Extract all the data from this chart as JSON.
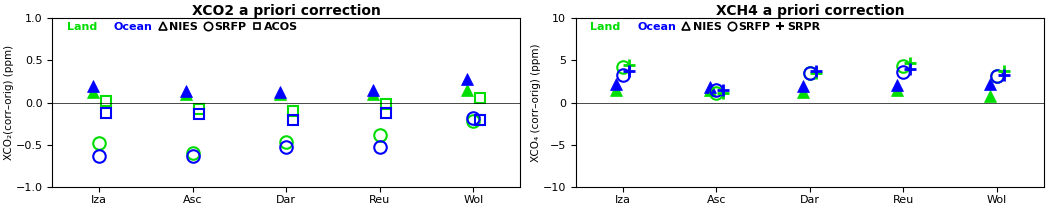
{
  "title_left": "XCO2 a priori correction",
  "title_right": "XCH4 a priori correction",
  "ylabel_left": "XCO₂(corr–orig) (ppm)",
  "ylabel_right": "XCO₄ (corr–orig) (ppm)",
  "stations": [
    "Iza",
    "Asc",
    "Dar",
    "Reu",
    "Wol"
  ],
  "ylim_left": [
    -1.0,
    1.0
  ],
  "ylim_right": [
    -10,
    10
  ],
  "yticks_left": [
    -1.0,
    -0.5,
    0,
    0.5,
    1.0
  ],
  "yticks_right": [
    -10,
    -5,
    0,
    5,
    10
  ],
  "xco2": {
    "NIES": {
      "land": [
        0.13,
        0.1,
        0.1,
        0.1,
        0.15
      ],
      "ocean": [
        0.2,
        0.14,
        0.13,
        0.15,
        0.28
      ]
    },
    "SRFP": {
      "land": [
        -0.48,
        -0.6,
        -0.47,
        -0.38,
        -0.22
      ],
      "ocean": [
        -0.63,
        -0.63,
        -0.53,
        -0.53,
        -0.18
      ]
    },
    "ACOS": {
      "land": [
        0.02,
        -0.07,
        -0.1,
        -0.02,
        0.05
      ],
      "ocean": [
        -0.12,
        -0.13,
        -0.2,
        -0.12,
        -0.2
      ]
    }
  },
  "xch4": {
    "NIES": {
      "land": [
        1.5,
        1.5,
        1.3,
        1.5,
        0.8
      ],
      "ocean": [
        2.2,
        1.8,
        2.0,
        2.1,
        2.2
      ]
    },
    "SRFP": {
      "land": [
        4.2,
        1.2,
        3.5,
        4.3,
        3.2
      ],
      "ocean": [
        3.3,
        1.5,
        3.5,
        3.6,
        3.1
      ]
    },
    "SRPR": {
      "land": [
        4.5,
        1.2,
        3.5,
        4.7,
        3.8
      ],
      "ocean": [
        3.8,
        1.5,
        3.8,
        4.0,
        3.3
      ]
    }
  },
  "color_land": "#00dd00",
  "color_ocean": "#0000ff",
  "bg_color": "#ffffff",
  "title_fontsize": 10,
  "label_fontsize": 7.5,
  "tick_fontsize": 8,
  "legend_fontsize": 8,
  "marker_size": 8,
  "triangle_size": 9
}
